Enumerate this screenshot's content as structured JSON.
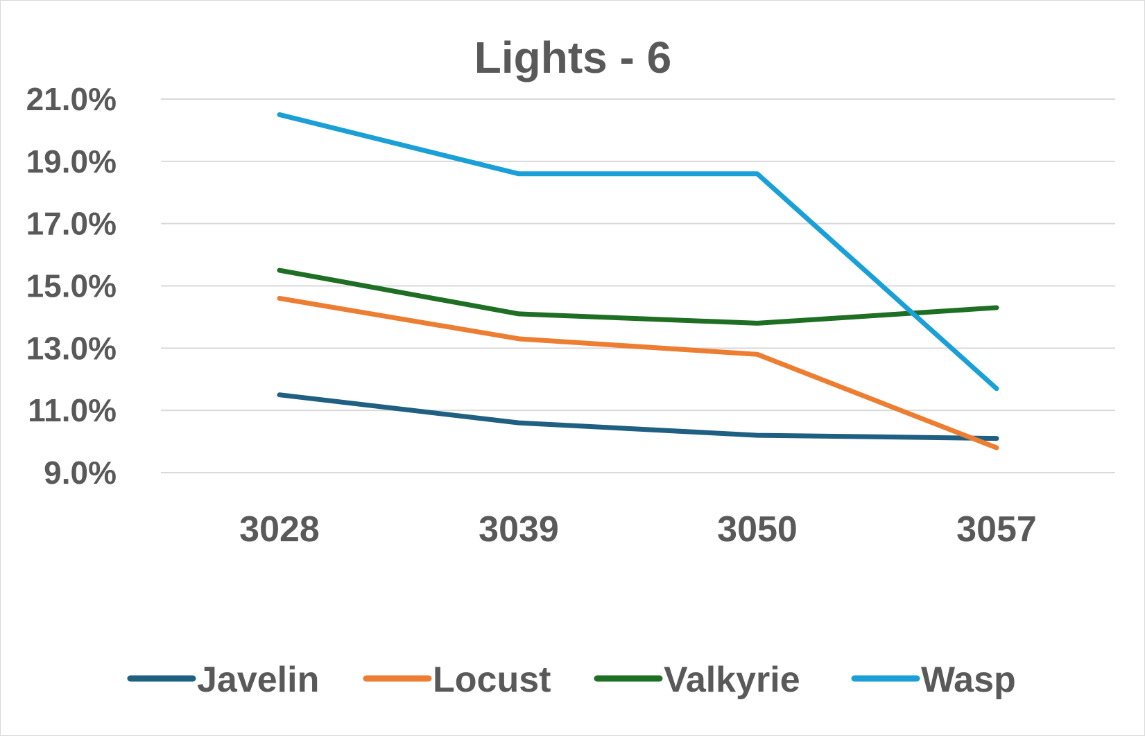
{
  "chart_data": {
    "type": "line",
    "title": "Lights - 6",
    "xlabel": "",
    "ylabel": "",
    "categories": [
      "3028",
      "3039",
      "3050",
      "3057"
    ],
    "ylim": [
      9.0,
      21.0
    ],
    "yticks": [
      "9.0%",
      "11.0%",
      "13.0%",
      "15.0%",
      "17.0%",
      "19.0%",
      "21.0%"
    ],
    "ytick_values": [
      9.0,
      11.0,
      13.0,
      15.0,
      17.0,
      19.0,
      21.0
    ],
    "grid": true,
    "legend_position": "bottom",
    "series": [
      {
        "name": "Javelin",
        "color": "#1f5f82",
        "values": [
          11.5,
          10.6,
          10.2,
          10.1
        ]
      },
      {
        "name": "Locust",
        "color": "#ed7d31",
        "values": [
          14.6,
          13.3,
          12.8,
          9.8
        ]
      },
      {
        "name": "Valkyrie",
        "color": "#1e6e23",
        "values": [
          15.5,
          14.1,
          13.8,
          14.3
        ]
      },
      {
        "name": "Wasp",
        "color": "#1a9fd6",
        "values": [
          20.5,
          18.6,
          18.6,
          11.7
        ]
      }
    ]
  }
}
